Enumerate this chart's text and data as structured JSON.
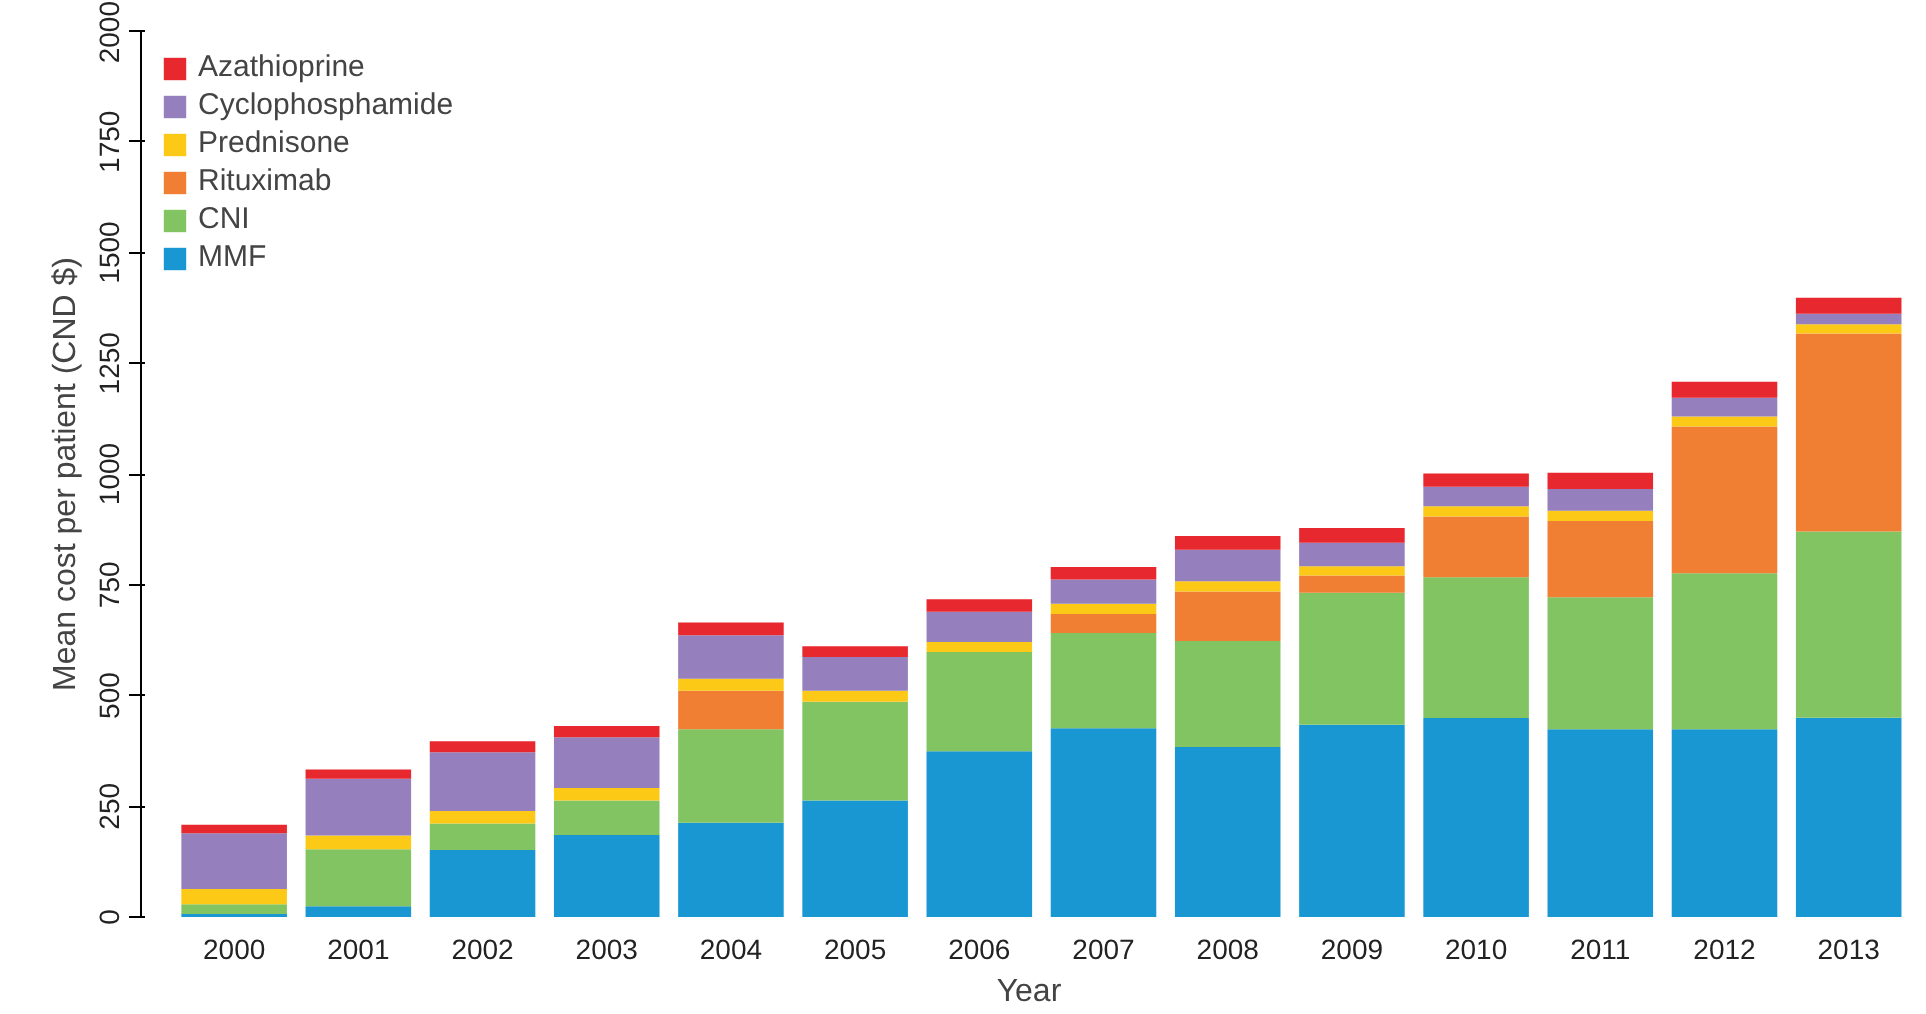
{
  "chart_data": {
    "type": "bar",
    "stacked": true,
    "xlabel": "Year",
    "ylabel": "Mean cost per patient (CND $)",
    "categories": [
      "2000",
      "2001",
      "2002",
      "2003",
      "2004",
      "2005",
      "2006",
      "2007",
      "2008",
      "2009",
      "2010",
      "2011",
      "2012",
      "2013"
    ],
    "series": [
      {
        "name": "MMF",
        "color": "#1897d3",
        "values": [
          7,
          24,
          151,
          185,
          213,
          263,
          374,
          426,
          384,
          434,
          449,
          424,
          424,
          450
        ]
      },
      {
        "name": "CNI",
        "color": "#82c462",
        "values": [
          22,
          129,
          60,
          78,
          211,
          223,
          224,
          215,
          239,
          298,
          318,
          298,
          352,
          420
        ]
      },
      {
        "name": "Rituximab",
        "color": "#f07f33",
        "values": [
          0,
          0,
          0,
          0,
          87,
          0,
          0,
          43,
          112,
          39,
          137,
          172,
          331,
          447
        ]
      },
      {
        "name": "Prednisone",
        "color": "#fcc917",
        "values": [
          34,
          31,
          28,
          28,
          27,
          25,
          23,
          23,
          23,
          21,
          23,
          23,
          23,
          21
        ]
      },
      {
        "name": "Cyclophosphamide",
        "color": "#9580bd",
        "values": [
          126,
          128,
          133,
          115,
          98,
          76,
          68,
          55,
          71,
          53,
          44,
          49,
          42,
          24
        ]
      },
      {
        "name": "Azathioprine",
        "color": "#e8282f",
        "values": [
          19,
          21,
          25,
          25,
          29,
          24,
          28,
          28,
          31,
          33,
          30,
          37,
          36,
          36
        ]
      }
    ],
    "ylim": [
      0,
      2000
    ],
    "yticks": [
      0,
      250,
      500,
      750,
      1000,
      1250,
      1500,
      1750,
      2000
    ],
    "grid": false,
    "legend": "top left"
  }
}
